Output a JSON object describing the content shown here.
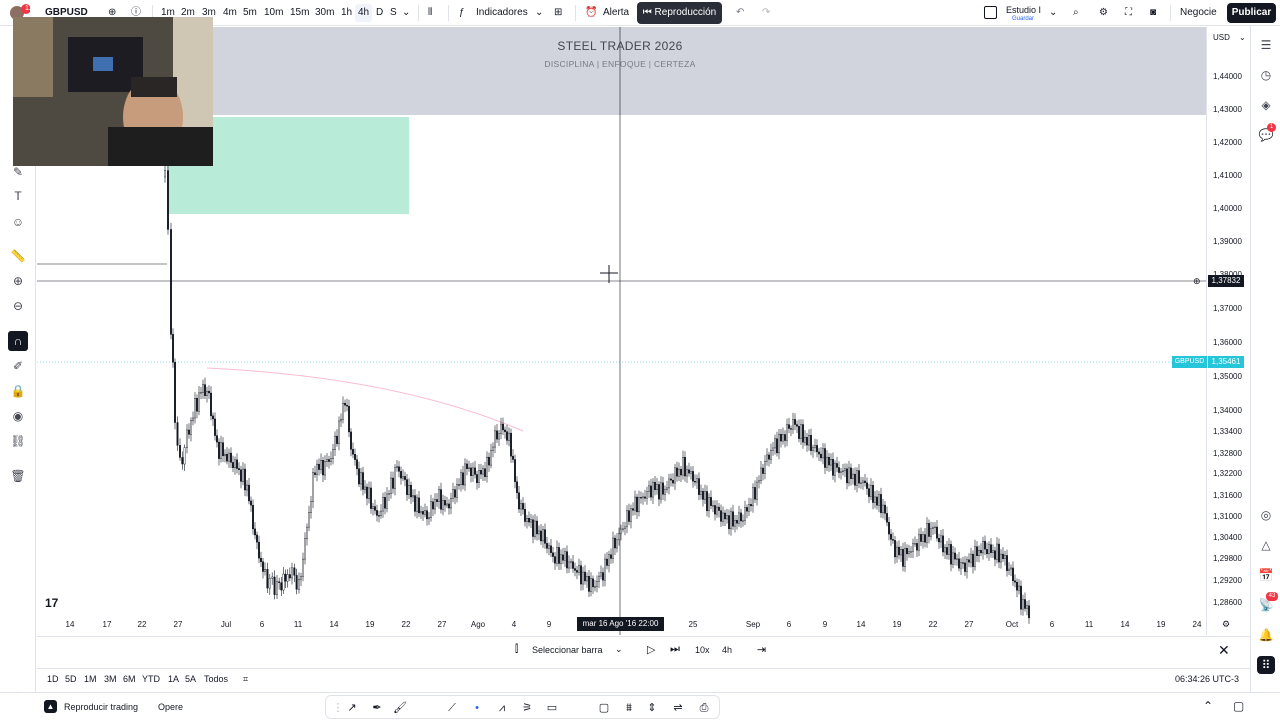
{
  "topbar": {
    "symbol": "GBPUSD",
    "notifications": "11",
    "intervals": [
      "1m",
      "2m",
      "3m",
      "4m",
      "5m",
      "10m",
      "15m",
      "30m",
      "1h",
      "4h",
      "D",
      "S"
    ],
    "active_interval": "4h",
    "indicators_label": "Indicadores",
    "alert_label": "Alerta",
    "replay_label": "Reproducción",
    "layout_name": "Estudio I",
    "layout_sub": "Guardar",
    "trade_label": "Negocie",
    "publish_label": "Publicar"
  },
  "chart": {
    "title": "STEEL TRADER 2026",
    "subtitle": "DISCIPLINA  |  ENFOQUE  |  CERTEZA",
    "symbol_tag": "GBPUSD",
    "current_price": "1,35461",
    "crosshair_price": "1,37832",
    "crosshair_time": "mar 16 Ago '16   22:00",
    "currency": "USD",
    "price_labels": [
      "1,44000",
      "1,43000",
      "1,42000",
      "1,41000",
      "1,40000",
      "1,39000",
      "1,38000",
      "1,37000",
      "1,36000",
      "1,35000",
      "1,34000",
      "1,33400",
      "1,32800",
      "1,32200",
      "1,31600",
      "1,31000",
      "1,30400",
      "1,29800",
      "1,29200",
      "1,28600"
    ],
    "time_labels": [
      "14",
      "17",
      "22",
      "27",
      "Jul",
      "6",
      "11",
      "14",
      "19",
      "22",
      "27",
      "Ago",
      "4",
      "9",
      "25",
      "Sep",
      "6",
      "9",
      "14",
      "19",
      "22",
      "27",
      "Oct",
      "6",
      "11",
      "14",
      "19",
      "24"
    ],
    "colors": {
      "accent": "#26c6da",
      "zone": "#a8e6cf",
      "premium": "#d1d4dc",
      "candle": "#131722"
    }
  },
  "replay_bar": {
    "select_bar_label": "Seleccionar barra",
    "speed": "10x",
    "interval": "4h"
  },
  "ranges": {
    "items": [
      "1D",
      "5D",
      "1M",
      "3M",
      "6M",
      "YTD",
      "1A",
      "5A",
      "Todos"
    ],
    "clock": "06:34:26 UTC-3"
  },
  "footer": {
    "replay_trading": "Reproducir trading",
    "trade": "Opere"
  },
  "badges": {
    "alerts": "1",
    "news": "43"
  },
  "logo_text": "17"
}
